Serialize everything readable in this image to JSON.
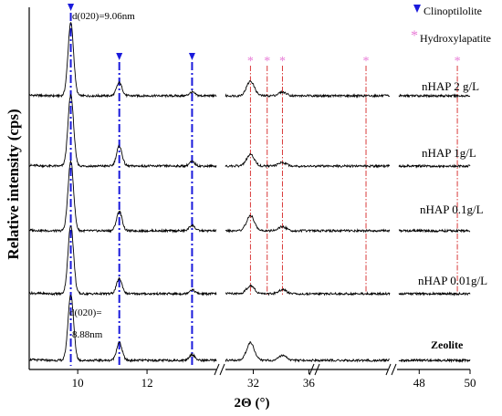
{
  "chart_data": {
    "type": "line",
    "title": "",
    "xlabel": "2Θ (°)",
    "ylabel": "Relative intensity (cps)",
    "x_axis": {
      "broken": true,
      "ticks": [
        "10",
        "12",
        "32",
        "36",
        "48",
        "50"
      ],
      "segments": [
        {
          "x_range": [
            8.6,
            14.0
          ],
          "ticks": [
            10,
            12
          ]
        },
        {
          "x_range": [
            30.0,
            36.3
          ],
          "ticks": [
            32,
            36
          ]
        },
        {
          "x_range": [
            36.3,
            46.0
          ],
          "ticks": []
        },
        {
          "x_range": [
            47.2,
            50.0
          ],
          "ticks": [
            48,
            50
          ]
        }
      ]
    },
    "legend": {
      "placement": "top-right",
      "items": [
        {
          "marker": "▼",
          "label": "Clinoptilolite",
          "color": "#1a1adc"
        },
        {
          "marker": "*",
          "label": "Hydroxylapatite",
          "color": "#e87ad6"
        }
      ]
    },
    "annotations": {
      "d020_top": "d(020)=9.06nm",
      "d020_bottom_line1": "d(020)=",
      "d020_bottom_line2": "8.88nm"
    },
    "reference_lines": {
      "clinoptilolite_2theta": [
        9.8,
        11.2,
        13.3
      ],
      "hydroxylapatite_2theta": [
        31.8,
        33.0,
        34.1,
        43.0,
        49.5
      ]
    },
    "series": [
      {
        "name": "nHAP 2 g/L",
        "peaks": [
          {
            "x": 9.8,
            "height": 1.0
          },
          {
            "x": 11.2,
            "height": 0.18
          },
          {
            "x": 13.3,
            "height": 0.05
          },
          {
            "x": 31.8,
            "height": 0.2
          },
          {
            "x": 34.1,
            "height": 0.05
          }
        ]
      },
      {
        "name": "nHAP 1g/L",
        "peaks": [
          {
            "x": 9.8,
            "height": 1.0
          },
          {
            "x": 11.2,
            "height": 0.28
          },
          {
            "x": 13.3,
            "height": 0.06
          },
          {
            "x": 31.8,
            "height": 0.16
          },
          {
            "x": 34.1,
            "height": 0.05
          }
        ]
      },
      {
        "name": "nHAP 0.1g/L",
        "peaks": [
          {
            "x": 9.8,
            "height": 1.0
          },
          {
            "x": 11.2,
            "height": 0.28
          },
          {
            "x": 13.3,
            "height": 0.08
          },
          {
            "x": 31.8,
            "height": 0.22
          },
          {
            "x": 34.1,
            "height": 0.06
          }
        ]
      },
      {
        "name": "nHAP 0.01g/L",
        "peaks": [
          {
            "x": 9.8,
            "height": 1.0
          },
          {
            "x": 11.2,
            "height": 0.22
          },
          {
            "x": 13.3,
            "height": 0.06
          },
          {
            "x": 31.8,
            "height": 0.12
          },
          {
            "x": 34.1,
            "height": 0.06
          }
        ]
      },
      {
        "name": "Zeolite",
        "peaks": [
          {
            "x": 9.8,
            "height": 1.0
          },
          {
            "x": 11.2,
            "height": 0.27
          },
          {
            "x": 13.3,
            "height": 0.09
          },
          {
            "x": 31.8,
            "height": 0.27
          },
          {
            "x": 34.1,
            "height": 0.07
          }
        ]
      }
    ],
    "grid": false
  }
}
